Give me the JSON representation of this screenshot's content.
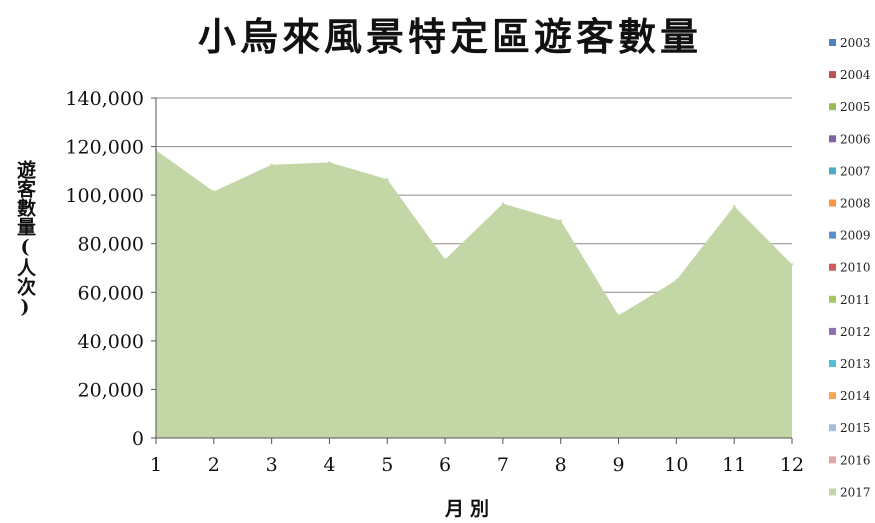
{
  "chart_data": {
    "type": "area",
    "title": "小烏來風景特定區遊客數量",
    "xlabel": "月別",
    "ylabel": "遊客數量(人次)",
    "x": [
      1,
      2,
      3,
      4,
      5,
      6,
      7,
      8,
      9,
      10,
      11,
      12
    ],
    "ylim": [
      0,
      140000
    ],
    "yticks": [
      "0",
      "20,000",
      "40,000",
      "60,000",
      "80,000",
      "100,000",
      "120,000",
      "140,000"
    ],
    "grid": true,
    "legend_position": "right",
    "legend": [
      {
        "name": "2003",
        "color": "#4f81bd"
      },
      {
        "name": "2004",
        "color": "#c0504d"
      },
      {
        "name": "2005",
        "color": "#9bbb59"
      },
      {
        "name": "2006",
        "color": "#8064a2"
      },
      {
        "name": "2007",
        "color": "#4bacc6"
      },
      {
        "name": "2008",
        "color": "#f79646"
      },
      {
        "name": "2009",
        "color": "#5b8fd0"
      },
      {
        "name": "2010",
        "color": "#d05b58"
      },
      {
        "name": "2011",
        "color": "#a7c762"
      },
      {
        "name": "2012",
        "color": "#8c6fb0"
      },
      {
        "name": "2013",
        "color": "#56bcd6"
      },
      {
        "name": "2014",
        "color": "#f9a552"
      },
      {
        "name": "2015",
        "color": "#a9bce0"
      },
      {
        "name": "2016",
        "color": "#e0a9a7"
      },
      {
        "name": "2017",
        "color": "#c3d6a6"
      }
    ],
    "series": [
      {
        "name": "2017",
        "color": "#c3d6a6",
        "values": [
          118500,
          101500,
          112500,
          113500,
          106500,
          73500,
          96500,
          89500,
          50500,
          65000,
          95500,
          71500
        ]
      }
    ]
  }
}
